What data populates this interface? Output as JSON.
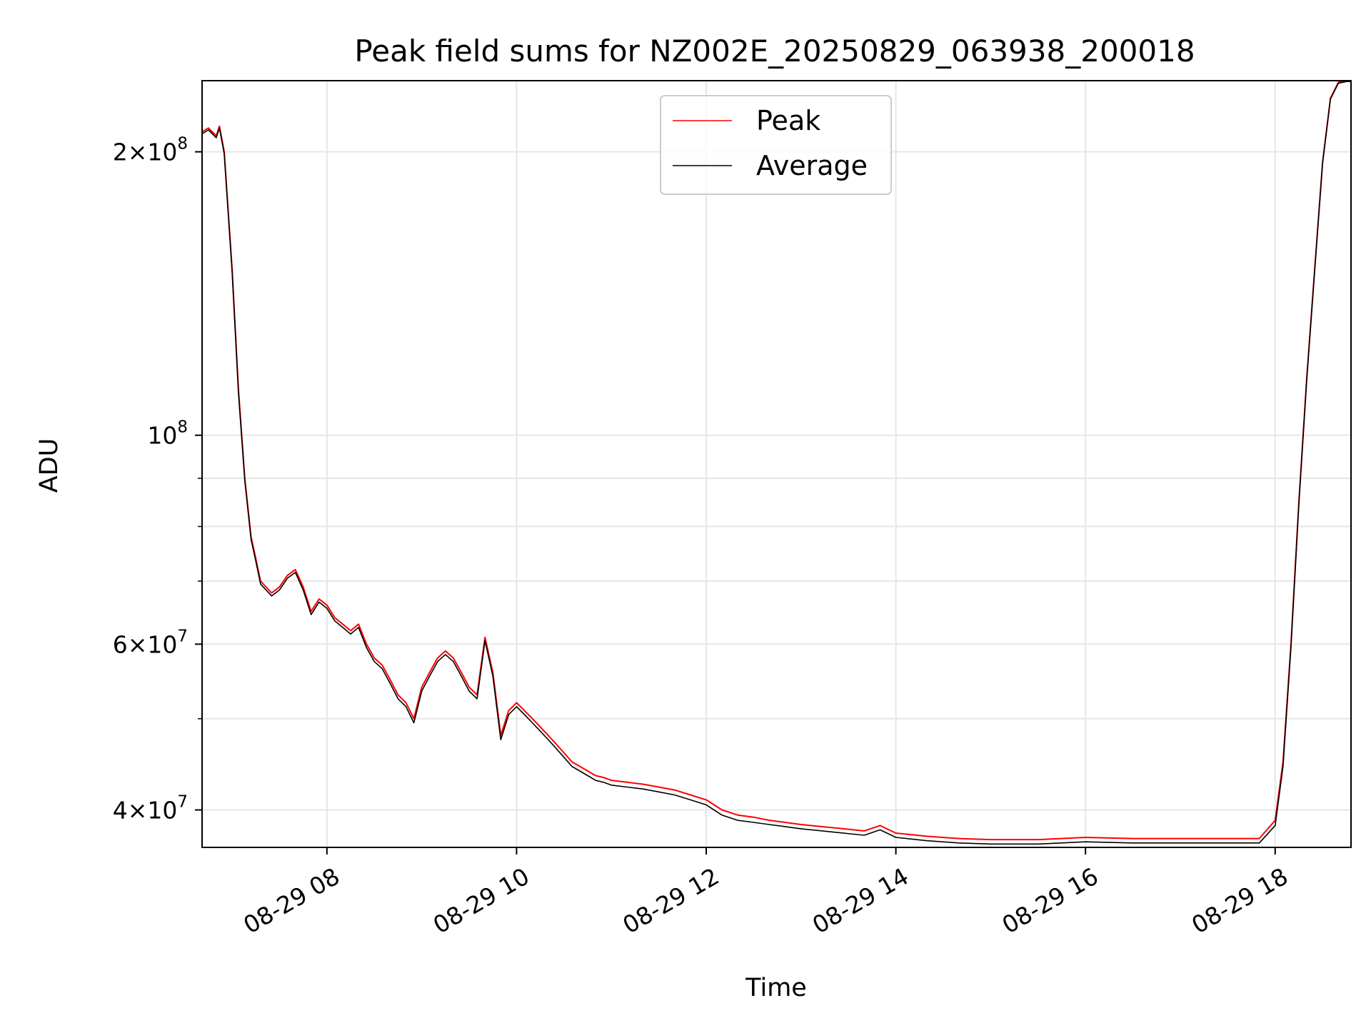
{
  "chart_data": {
    "type": "line",
    "title": "Peak field sums for NZ002E_20250829_063938_200018",
    "xlabel": "Time",
    "ylabel": "ADU",
    "y_scale": "log",
    "xlim": [
      "2025-08-29 06:41",
      "2025-08-29 18:48"
    ],
    "ylim": [
      36500000,
      238000000
    ],
    "grid": true,
    "legend_position": "top-center",
    "x_ticks": [
      "08-29 08",
      "08-29 10",
      "08-29 12",
      "08-29 14",
      "08-29 16",
      "08-29 18"
    ],
    "y_ticks": [
      {
        "value": 200000000,
        "label_mantissa": "2",
        "label_exp": "8"
      },
      {
        "value": 100000000,
        "label_mantissa": "",
        "label_exp": "8"
      },
      {
        "value": 60000000,
        "label_mantissa": "6",
        "label_exp": "7"
      },
      {
        "value": 40000000,
        "label_mantissa": "4",
        "label_exp": "7"
      }
    ],
    "x": [
      "2025-08-29 06:41",
      "2025-08-29 06:45",
      "2025-08-29 06:50",
      "2025-08-29 06:52",
      "2025-08-29 06:55",
      "2025-08-29 07:00",
      "2025-08-29 07:04",
      "2025-08-29 07:08",
      "2025-08-29 07:12",
      "2025-08-29 07:15",
      "2025-08-29 07:18",
      "2025-08-29 07:25",
      "2025-08-29 07:30",
      "2025-08-29 07:35",
      "2025-08-29 07:40",
      "2025-08-29 07:45",
      "2025-08-29 07:50",
      "2025-08-29 07:55",
      "2025-08-29 08:00",
      "2025-08-29 08:05",
      "2025-08-29 08:10",
      "2025-08-29 08:15",
      "2025-08-29 08:20",
      "2025-08-29 08:25",
      "2025-08-29 08:30",
      "2025-08-29 08:35",
      "2025-08-29 08:40",
      "2025-08-29 08:45",
      "2025-08-29 08:50",
      "2025-08-29 08:55",
      "2025-08-29 09:00",
      "2025-08-29 09:05",
      "2025-08-29 09:10",
      "2025-08-29 09:15",
      "2025-08-29 09:20",
      "2025-08-29 09:25",
      "2025-08-29 09:30",
      "2025-08-29 09:35",
      "2025-08-29 09:40",
      "2025-08-29 09:45",
      "2025-08-29 09:50",
      "2025-08-29 09:55",
      "2025-08-29 10:00",
      "2025-08-29 10:05",
      "2025-08-29 10:10",
      "2025-08-29 10:15",
      "2025-08-29 10:20",
      "2025-08-29 10:25",
      "2025-08-29 10:30",
      "2025-08-29 10:35",
      "2025-08-29 10:40",
      "2025-08-29 10:45",
      "2025-08-29 10:50",
      "2025-08-29 10:55",
      "2025-08-29 11:00",
      "2025-08-29 11:10",
      "2025-08-29 11:20",
      "2025-08-29 11:30",
      "2025-08-29 11:40",
      "2025-08-29 11:50",
      "2025-08-29 12:00",
      "2025-08-29 12:10",
      "2025-08-29 12:20",
      "2025-08-29 12:30",
      "2025-08-29 12:40",
      "2025-08-29 12:50",
      "2025-08-29 13:00",
      "2025-08-29 13:20",
      "2025-08-29 13:40",
      "2025-08-29 13:50",
      "2025-08-29 14:00",
      "2025-08-29 14:20",
      "2025-08-29 14:40",
      "2025-08-29 15:00",
      "2025-08-29 15:30",
      "2025-08-29 16:00",
      "2025-08-29 16:30",
      "2025-08-29 17:00",
      "2025-08-29 17:30",
      "2025-08-29 17:50",
      "2025-08-29 18:00",
      "2025-08-29 18:05",
      "2025-08-29 18:10",
      "2025-08-29 18:15",
      "2025-08-29 18:20",
      "2025-08-29 18:25",
      "2025-08-29 18:30",
      "2025-08-29 18:35",
      "2025-08-29 18:40",
      "2025-08-29 18:45",
      "2025-08-29 18:48"
    ],
    "series": [
      {
        "name": "Peak",
        "color": "#ff0000",
        "values": [
          210000000,
          212000000,
          208000000,
          213000000,
          200000000,
          150000000,
          112000000,
          90000000,
          78000000,
          74000000,
          70000000,
          68000000,
          69000000,
          71000000,
          72000000,
          69000000,
          65000000,
          67000000,
          66000000,
          64000000,
          63000000,
          62000000,
          63000000,
          60000000,
          58000000,
          57000000,
          55000000,
          53000000,
          52000000,
          50000000,
          54000000,
          56000000,
          58000000,
          59000000,
          58000000,
          56000000,
          54000000,
          53000000,
          61000000,
          56000000,
          48000000,
          51000000,
          52000000,
          51000000,
          50000000,
          49000000,
          48000000,
          47000000,
          46000000,
          45000000,
          44500000,
          44000000,
          43500000,
          43300000,
          43000000,
          42800000,
          42600000,
          42300000,
          42000000,
          41500000,
          41000000,
          40000000,
          39500000,
          39300000,
          39000000,
          38800000,
          38600000,
          38300000,
          38000000,
          38500000,
          37800000,
          37500000,
          37300000,
          37200000,
          37200000,
          37400000,
          37300000,
          37300000,
          37300000,
          37300000,
          39000000,
          45000000,
          60000000,
          85000000,
          115000000,
          150000000,
          195000000,
          228000000,
          237000000,
          238000000,
          238000000
        ]
      },
      {
        "name": "Average",
        "color": "#000000",
        "values": [
          209000000,
          211000000,
          207000000,
          212000000,
          199000000,
          149000000,
          111000000,
          89500000,
          77500000,
          73500000,
          69500000,
          67500000,
          68500000,
          70500000,
          71500000,
          68500000,
          64500000,
          66500000,
          65500000,
          63500000,
          62500000,
          61500000,
          62500000,
          59500000,
          57500000,
          56500000,
          54500000,
          52500000,
          51500000,
          49500000,
          53500000,
          55500000,
          57500000,
          58500000,
          57500000,
          55500000,
          53500000,
          52500000,
          60500000,
          55500000,
          47500000,
          50500000,
          51500000,
          50500000,
          49500000,
          48500000,
          47500000,
          46500000,
          45500000,
          44500000,
          44000000,
          43500000,
          43000000,
          42800000,
          42500000,
          42300000,
          42100000,
          41800000,
          41500000,
          41000000,
          40500000,
          39500000,
          39000000,
          38800000,
          38600000,
          38400000,
          38200000,
          37900000,
          37600000,
          38100000,
          37400000,
          37100000,
          36900000,
          36800000,
          36800000,
          37000000,
          36900000,
          36900000,
          36900000,
          36900000,
          38500000,
          44500000,
          59500000,
          84500000,
          114500000,
          149500000,
          194500000,
          227500000,
          236500000,
          237500000,
          237500000
        ]
      }
    ]
  }
}
